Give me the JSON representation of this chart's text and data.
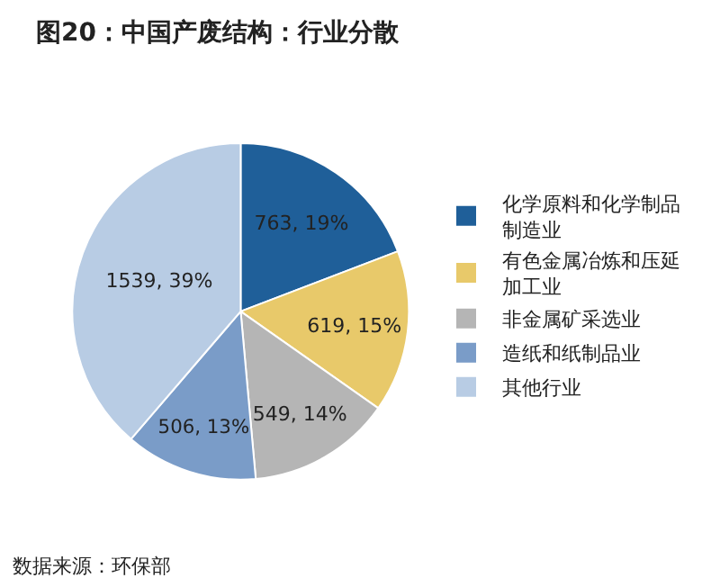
{
  "chart_data": {
    "type": "pie",
    "title": "图20：中国产废结构：行业分散",
    "categories": [
      "化学原料和化学制品制造业",
      "有色金属冶炼和压延加工业",
      "非金属矿采选业",
      "造纸和纸制品业",
      "其他行业"
    ],
    "values": [
      763,
      619,
      549,
      506,
      1539
    ],
    "value_labels": [
      "763, 19%",
      "619, 15%",
      "549, 14%",
      "506, 13%",
      "1539, 39%"
    ],
    "colors": [
      "#1f5f99",
      "#e8c96a",
      "#b5b5b5",
      "#7a9cc8",
      "#b8cce4"
    ],
    "legend": "right",
    "annotations": [
      "数据来源：环保部"
    ]
  }
}
